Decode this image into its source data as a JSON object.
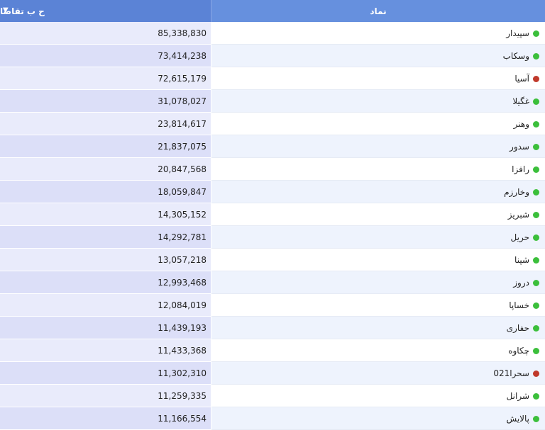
{
  "table": {
    "columns": {
      "demand": "ح ب تقاضا",
      "symbol": "نماد"
    },
    "sort_indicator": "▼",
    "status_colors": {
      "green": "#3bbf3b",
      "red": "#c0392b"
    },
    "rows": [
      {
        "symbol": "سپیدار",
        "demand": "85,338,830",
        "status": "green"
      },
      {
        "symbol": "وسکاب",
        "demand": "73,414,238",
        "status": "green"
      },
      {
        "symbol": "آسیا",
        "demand": "72,615,179",
        "status": "red"
      },
      {
        "symbol": "غگیلا",
        "demand": "31,078,027",
        "status": "green"
      },
      {
        "symbol": "وهنر",
        "demand": "23,814,617",
        "status": "green"
      },
      {
        "symbol": "سدور",
        "demand": "21,837,075",
        "status": "green"
      },
      {
        "symbol": "رافزا",
        "demand": "20,847,568",
        "status": "green"
      },
      {
        "symbol": "وخارزم",
        "demand": "18,059,847",
        "status": "green"
      },
      {
        "symbol": "شبریز",
        "demand": "14,305,152",
        "status": "green"
      },
      {
        "symbol": "حریل",
        "demand": "14,292,781",
        "status": "green"
      },
      {
        "symbol": "شپنا",
        "demand": "13,057,218",
        "status": "green"
      },
      {
        "symbol": "دروز",
        "demand": "12,993,468",
        "status": "green"
      },
      {
        "symbol": "خساپا",
        "demand": "12,084,019",
        "status": "green"
      },
      {
        "symbol": "حفاری",
        "demand": "11,439,193",
        "status": "green"
      },
      {
        "symbol": "چکاوه",
        "demand": "11,433,368",
        "status": "green"
      },
      {
        "symbol": "سحرا021",
        "demand": "11,302,310",
        "status": "red"
      },
      {
        "symbol": "شرانل",
        "demand": "11,259,335",
        "status": "green"
      },
      {
        "symbol": "پالایش",
        "demand": "11,166,554",
        "status": "green"
      }
    ]
  }
}
